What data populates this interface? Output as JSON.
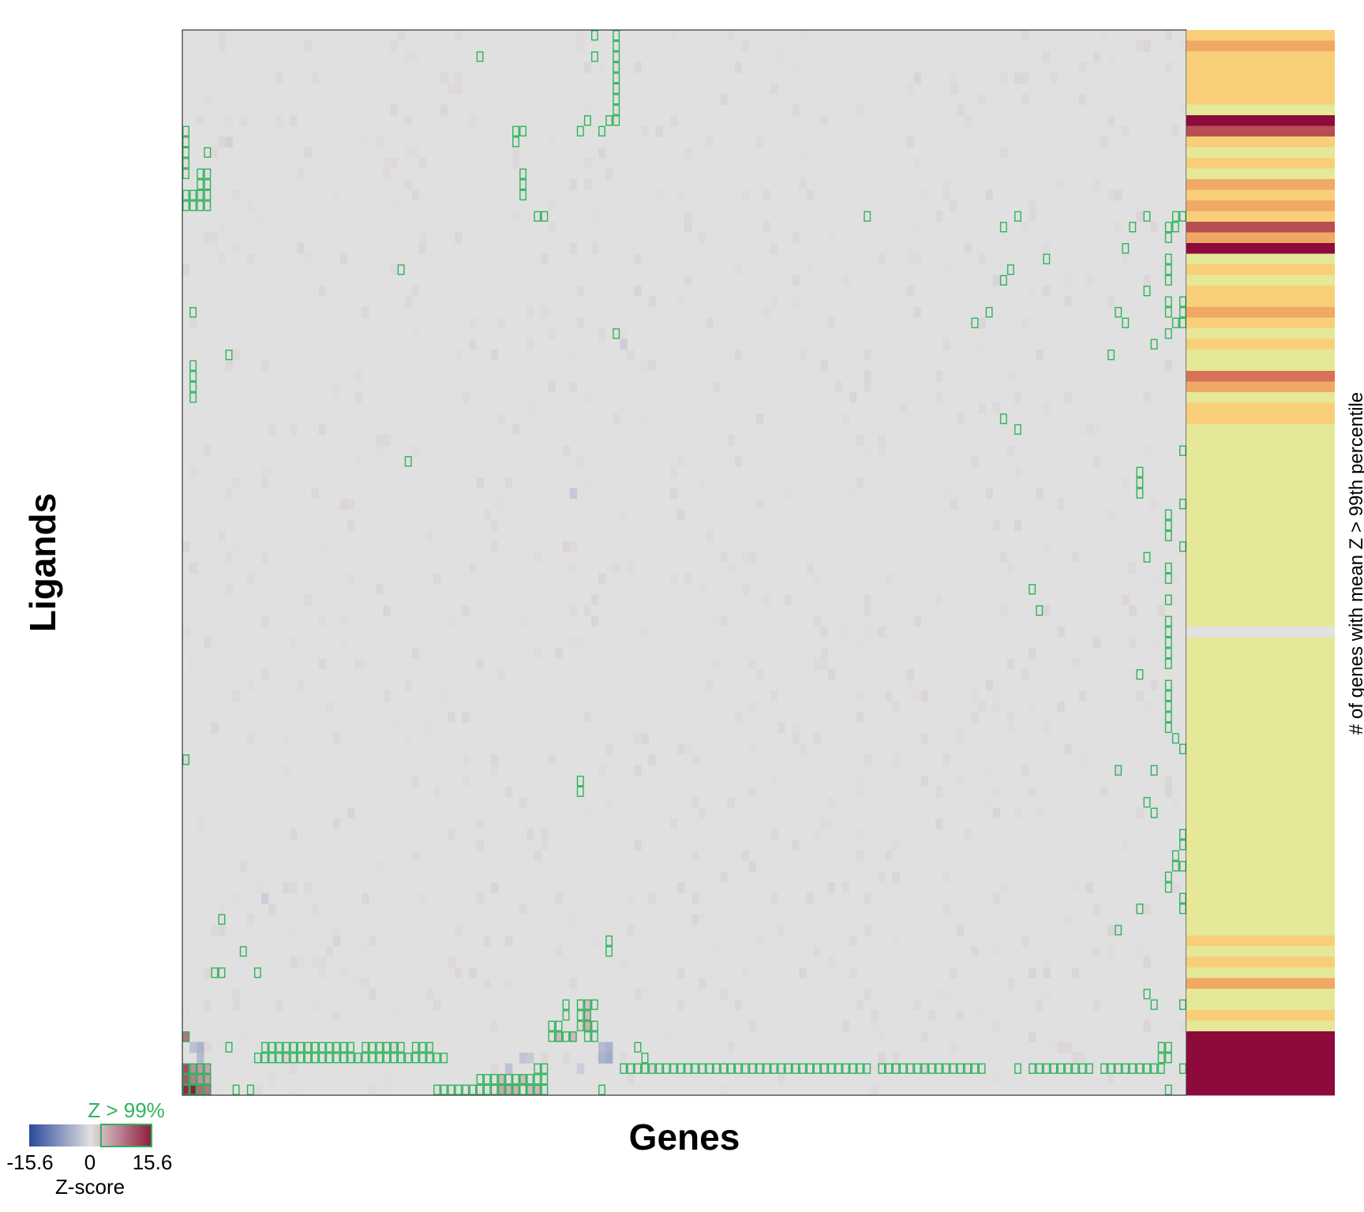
{
  "chart_data": {
    "type": "heatmap",
    "xlabel": "Genes",
    "ylabel": "Ligands",
    "n_rows": 100,
    "n_cols": 140,
    "colorbar": {
      "min_label": "-15.6",
      "mid_label": "0",
      "max_label": "15.6",
      "min": -15.6,
      "max": 15.6,
      "title": "Z-score",
      "threshold_label": "Z > 99%",
      "low_color": "#2b4a9c",
      "mid_color": "#e0e0e0",
      "high_color": "#8e1b3d",
      "highlight_color": "#2eb35a"
    },
    "side_bar": {
      "title": "# of genes with mean Z > 99th percentile",
      "palette": {
        "0": "#e2e2e2",
        "1": "#e5e896",
        "2": "#f8cf78",
        "3": "#f0a865",
        "4": "#d87058",
        "5": "#b84e52",
        "6": "#8c0a3c"
      },
      "levels": [
        2,
        3,
        2,
        2,
        2,
        2,
        2,
        1,
        6,
        5,
        2,
        1,
        2,
        1,
        3,
        2,
        3,
        2,
        5,
        3,
        6,
        1,
        2,
        1,
        2,
        2,
        3,
        2,
        1,
        2,
        1,
        1,
        4,
        3,
        1,
        2,
        2,
        1,
        1,
        1,
        1,
        1,
        1,
        1,
        1,
        1,
        1,
        1,
        1,
        1,
        1,
        1,
        1,
        1,
        1,
        1,
        0,
        1,
        1,
        1,
        1,
        1,
        1,
        1,
        1,
        1,
        1,
        1,
        1,
        1,
        1,
        1,
        1,
        1,
        1,
        1,
        1,
        1,
        1,
        1,
        1,
        1,
        1,
        1,
        1,
        2,
        1,
        2,
        1,
        3,
        1,
        1,
        2,
        1,
        6,
        6,
        6,
        6,
        6,
        6
      ]
    },
    "significant_cells": [
      [
        0,
        57
      ],
      [
        0,
        60
      ],
      [
        1,
        60
      ],
      [
        2,
        41
      ],
      [
        2,
        57
      ],
      [
        2,
        60
      ],
      [
        3,
        60
      ],
      [
        4,
        60
      ],
      [
        5,
        60
      ],
      [
        6,
        60
      ],
      [
        7,
        60
      ],
      [
        8,
        56
      ],
      [
        8,
        59
      ],
      [
        8,
        60
      ],
      [
        9,
        0
      ],
      [
        9,
        46
      ],
      [
        9,
        47
      ],
      [
        9,
        55
      ],
      [
        9,
        58
      ],
      [
        10,
        0
      ],
      [
        10,
        46
      ],
      [
        11,
        0
      ],
      [
        11,
        3
      ],
      [
        12,
        0
      ],
      [
        13,
        0
      ],
      [
        13,
        2
      ],
      [
        13,
        3
      ],
      [
        13,
        47
      ],
      [
        14,
        2
      ],
      [
        14,
        3
      ],
      [
        14,
        47
      ],
      [
        15,
        0
      ],
      [
        15,
        1
      ],
      [
        15,
        2
      ],
      [
        15,
        3
      ],
      [
        15,
        47
      ],
      [
        16,
        0
      ],
      [
        16,
        1
      ],
      [
        16,
        2
      ],
      [
        16,
        3
      ],
      [
        17,
        49
      ],
      [
        17,
        50
      ],
      [
        17,
        95
      ],
      [
        17,
        116
      ],
      [
        17,
        134
      ],
      [
        17,
        138
      ],
      [
        17,
        139
      ],
      [
        18,
        114
      ],
      [
        18,
        132
      ],
      [
        18,
        137
      ],
      [
        18,
        138
      ],
      [
        19,
        137
      ],
      [
        20,
        131
      ],
      [
        21,
        120
      ],
      [
        21,
        137
      ],
      [
        22,
        30
      ],
      [
        22,
        115
      ],
      [
        22,
        137
      ],
      [
        23,
        114
      ],
      [
        23,
        137
      ],
      [
        24,
        134
      ],
      [
        25,
        137
      ],
      [
        25,
        139
      ],
      [
        26,
        1
      ],
      [
        26,
        112
      ],
      [
        26,
        130
      ],
      [
        26,
        137
      ],
      [
        26,
        139
      ],
      [
        27,
        110
      ],
      [
        27,
        131
      ],
      [
        27,
        138
      ],
      [
        27,
        139
      ],
      [
        28,
        60
      ],
      [
        28,
        137
      ],
      [
        29,
        135
      ],
      [
        30,
        6
      ],
      [
        30,
        129
      ],
      [
        31,
        1
      ],
      [
        32,
        1
      ],
      [
        33,
        1
      ],
      [
        34,
        1
      ],
      [
        36,
        114
      ],
      [
        37,
        116
      ],
      [
        39,
        139
      ],
      [
        40,
        31
      ],
      [
        41,
        133
      ],
      [
        42,
        133
      ],
      [
        43,
        133
      ],
      [
        44,
        139
      ],
      [
        45,
        137
      ],
      [
        46,
        137
      ],
      [
        47,
        137
      ],
      [
        48,
        139
      ],
      [
        49,
        134
      ],
      [
        50,
        137
      ],
      [
        51,
        137
      ],
      [
        52,
        118
      ],
      [
        53,
        137
      ],
      [
        54,
        119
      ],
      [
        55,
        137
      ],
      [
        56,
        137
      ],
      [
        57,
        137
      ],
      [
        58,
        137
      ],
      [
        59,
        137
      ],
      [
        60,
        133
      ],
      [
        61,
        137
      ],
      [
        62,
        137
      ],
      [
        63,
        137
      ],
      [
        64,
        137
      ],
      [
        65,
        137
      ],
      [
        66,
        138
      ],
      [
        67,
        139
      ],
      [
        68,
        0
      ],
      [
        69,
        130
      ],
      [
        69,
        135
      ],
      [
        70,
        55
      ],
      [
        71,
        55
      ],
      [
        72,
        134
      ],
      [
        73,
        135
      ],
      [
        75,
        139
      ],
      [
        76,
        139
      ],
      [
        77,
        138
      ],
      [
        78,
        138
      ],
      [
        78,
        139
      ],
      [
        79,
        137
      ],
      [
        80,
        137
      ],
      [
        81,
        139
      ],
      [
        82,
        133
      ],
      [
        82,
        139
      ],
      [
        83,
        5
      ],
      [
        84,
        130
      ],
      [
        85,
        59
      ],
      [
        86,
        59
      ],
      [
        86,
        8
      ],
      [
        88,
        4
      ],
      [
        88,
        5
      ],
      [
        88,
        10
      ],
      [
        90,
        134
      ],
      [
        91,
        53
      ],
      [
        91,
        55
      ],
      [
        91,
        56
      ],
      [
        91,
        57
      ],
      [
        91,
        135
      ],
      [
        91,
        139
      ],
      [
        92,
        53
      ],
      [
        92,
        55
      ],
      [
        92,
        56
      ],
      [
        93,
        51
      ],
      [
        93,
        52
      ],
      [
        93,
        55
      ],
      [
        93,
        56
      ],
      [
        93,
        57
      ],
      [
        94,
        0
      ],
      [
        94,
        51
      ],
      [
        94,
        52
      ],
      [
        94,
        53
      ],
      [
        94,
        54
      ],
      [
        94,
        56
      ],
      [
        94,
        57
      ],
      [
        95,
        6
      ],
      [
        95,
        11
      ],
      [
        95,
        12
      ],
      [
        95,
        13
      ],
      [
        95,
        14
      ],
      [
        95,
        15
      ],
      [
        95,
        16
      ],
      [
        95,
        17
      ],
      [
        95,
        18
      ],
      [
        95,
        19
      ],
      [
        95,
        20
      ],
      [
        95,
        21
      ],
      [
        95,
        22
      ],
      [
        95,
        23
      ],
      [
        95,
        25
      ],
      [
        95,
        26
      ],
      [
        95,
        27
      ],
      [
        95,
        28
      ],
      [
        95,
        29
      ],
      [
        95,
        30
      ],
      [
        95,
        32
      ],
      [
        95,
        33
      ],
      [
        95,
        34
      ],
      [
        95,
        63
      ],
      [
        95,
        136
      ],
      [
        95,
        137
      ],
      [
        96,
        10
      ],
      [
        96,
        11
      ],
      [
        96,
        12
      ],
      [
        96,
        13
      ],
      [
        96,
        14
      ],
      [
        96,
        15
      ],
      [
        96,
        16
      ],
      [
        96,
        17
      ],
      [
        96,
        18
      ],
      [
        96,
        19
      ],
      [
        96,
        20
      ],
      [
        96,
        21
      ],
      [
        96,
        22
      ],
      [
        96,
        23
      ],
      [
        96,
        24
      ],
      [
        96,
        25
      ],
      [
        96,
        26
      ],
      [
        96,
        27
      ],
      [
        96,
        28
      ],
      [
        96,
        29
      ],
      [
        96,
        30
      ],
      [
        96,
        31
      ],
      [
        96,
        32
      ],
      [
        96,
        33
      ],
      [
        96,
        34
      ],
      [
        96,
        35
      ],
      [
        96,
        36
      ],
      [
        96,
        33
      ],
      [
        96,
        64
      ],
      [
        96,
        136
      ],
      [
        96,
        137
      ],
      [
        97,
        0
      ],
      [
        97,
        1
      ],
      [
        97,
        2
      ],
      [
        97,
        3
      ],
      [
        97,
        49
      ],
      [
        97,
        50
      ],
      [
        97,
        61
      ],
      [
        97,
        62
      ],
      [
        97,
        63
      ],
      [
        97,
        64
      ],
      [
        97,
        65
      ],
      [
        97,
        66
      ],
      [
        97,
        67
      ],
      [
        97,
        68
      ],
      [
        97,
        69
      ],
      [
        97,
        70
      ],
      [
        97,
        71
      ],
      [
        97,
        72
      ],
      [
        97,
        73
      ],
      [
        97,
        74
      ],
      [
        97,
        75
      ],
      [
        97,
        76
      ],
      [
        97,
        77
      ],
      [
        97,
        78
      ],
      [
        97,
        79
      ],
      [
        97,
        80
      ],
      [
        97,
        81
      ],
      [
        97,
        82
      ],
      [
        97,
        83
      ],
      [
        97,
        84
      ],
      [
        97,
        85
      ],
      [
        97,
        86
      ],
      [
        97,
        87
      ],
      [
        97,
        88
      ],
      [
        97,
        89
      ],
      [
        97,
        90
      ],
      [
        97,
        91
      ],
      [
        97,
        92
      ],
      [
        97,
        93
      ],
      [
        97,
        94
      ],
      [
        97,
        95
      ],
      [
        97,
        97
      ],
      [
        97,
        98
      ],
      [
        97,
        99
      ],
      [
        97,
        100
      ],
      [
        97,
        101
      ],
      [
        97,
        102
      ],
      [
        97,
        103
      ],
      [
        97,
        104
      ],
      [
        97,
        105
      ],
      [
        97,
        106
      ],
      [
        97,
        107
      ],
      [
        97,
        108
      ],
      [
        97,
        109
      ],
      [
        97,
        110
      ],
      [
        97,
        111
      ],
      [
        97,
        116
      ],
      [
        97,
        118
      ],
      [
        97,
        119
      ],
      [
        97,
        120
      ],
      [
        97,
        121
      ],
      [
        97,
        122
      ],
      [
        97,
        123
      ],
      [
        97,
        124
      ],
      [
        97,
        125
      ],
      [
        97,
        126
      ],
      [
        97,
        128
      ],
      [
        97,
        129
      ],
      [
        97,
        130
      ],
      [
        97,
        131
      ],
      [
        97,
        132
      ],
      [
        97,
        133
      ],
      [
        97,
        134
      ],
      [
        97,
        135
      ],
      [
        97,
        136
      ],
      [
        97,
        139
      ],
      [
        98,
        0
      ],
      [
        98,
        1
      ],
      [
        98,
        2
      ],
      [
        98,
        3
      ],
      [
        98,
        41
      ],
      [
        98,
        42
      ],
      [
        98,
        43
      ],
      [
        98,
        44
      ],
      [
        98,
        45
      ],
      [
        98,
        46
      ],
      [
        98,
        47
      ],
      [
        98,
        48
      ],
      [
        98,
        49
      ],
      [
        98,
        50
      ],
      [
        99,
        0
      ],
      [
        99,
        1
      ],
      [
        99,
        2
      ],
      [
        99,
        3
      ],
      [
        99,
        7
      ],
      [
        99,
        9
      ],
      [
        99,
        35
      ],
      [
        99,
        36
      ],
      [
        99,
        37
      ],
      [
        99,
        38
      ],
      [
        99,
        39
      ],
      [
        99,
        40
      ],
      [
        99,
        41
      ],
      [
        99,
        42
      ],
      [
        99,
        43
      ],
      [
        99,
        44
      ],
      [
        99,
        45
      ],
      [
        99,
        46
      ],
      [
        99,
        47
      ],
      [
        99,
        48
      ],
      [
        99,
        49
      ],
      [
        99,
        50
      ],
      [
        99,
        58
      ],
      [
        99,
        137
      ]
    ],
    "strong_cells": [
      [
        94,
        0,
        0.55
      ],
      [
        97,
        0,
        0.75
      ],
      [
        98,
        0,
        0.7
      ],
      [
        98,
        1,
        0.5
      ],
      [
        98,
        2,
        0.4
      ],
      [
        98,
        3,
        0.35
      ],
      [
        99,
        0,
        0.95
      ],
      [
        99,
        1,
        1.0
      ],
      [
        99,
        2,
        0.6
      ],
      [
        99,
        3,
        0.55
      ],
      [
        97,
        1,
        0.4
      ],
      [
        97,
        2,
        0.35
      ],
      [
        97,
        3,
        0.3
      ],
      [
        93,
        56,
        0.25
      ],
      [
        94,
        52,
        0.2
      ],
      [
        94,
        54,
        0.2
      ],
      [
        99,
        44,
        0.3
      ],
      [
        99,
        45,
        0.25
      ],
      [
        99,
        46,
        0.25
      ],
      [
        98,
        44,
        0.2
      ],
      [
        92,
        56,
        0.2
      ],
      [
        91,
        56,
        0.15
      ],
      [
        98,
        47,
        0.2
      ],
      [
        99,
        48,
        0.2
      ],
      [
        99,
        49,
        0.22
      ]
    ],
    "negative_cells": [
      [
        95,
        2,
        0.3
      ],
      [
        95,
        1,
        0.2
      ],
      [
        96,
        2,
        0.25
      ],
      [
        95,
        58,
        0.25
      ],
      [
        96,
        58,
        0.3
      ],
      [
        95,
        59,
        0.3
      ],
      [
        96,
        59,
        0.35
      ],
      [
        97,
        45,
        0.2
      ],
      [
        96,
        47,
        0.18
      ],
      [
        96,
        48,
        0.15
      ],
      [
        29,
        61,
        0.12
      ],
      [
        43,
        54,
        0.15
      ],
      [
        81,
        11,
        0.12
      ],
      [
        10,
        6,
        0.1
      ],
      [
        97,
        55,
        0.12
      ]
    ]
  }
}
